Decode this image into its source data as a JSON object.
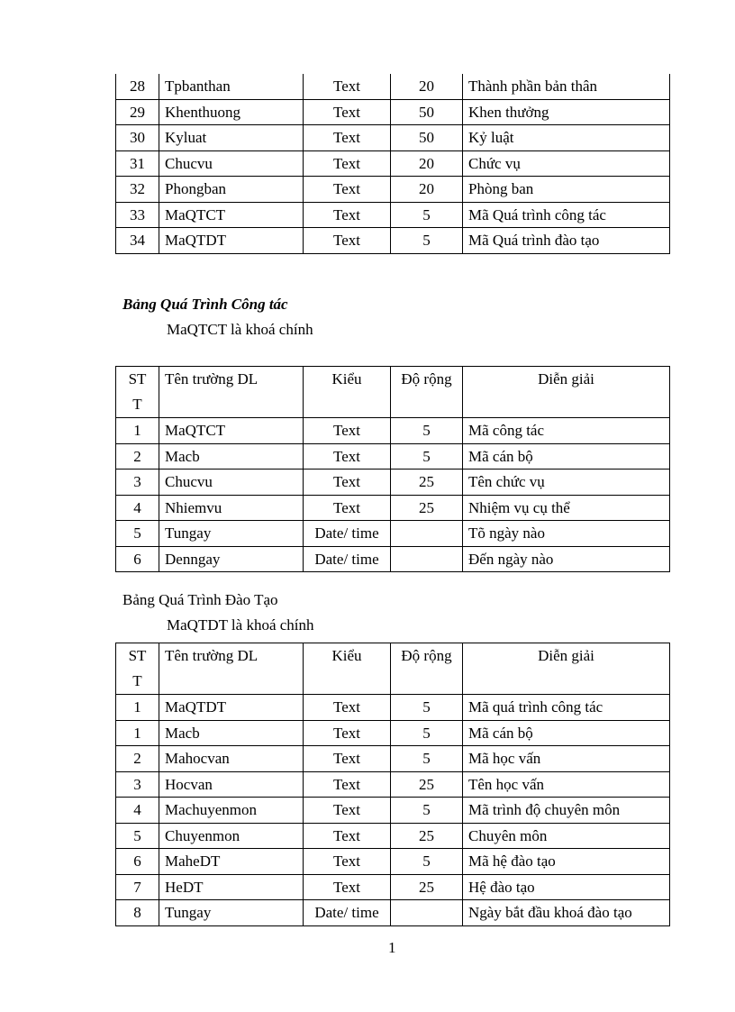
{
  "table_continued": {
    "rows": [
      [
        "28",
        "Tpbanthan",
        "Text",
        "20",
        "Thành phần bản thân"
      ],
      [
        "29",
        "Khenthuong",
        "Text",
        "50",
        "Khen thưởng"
      ],
      [
        "30",
        "Kyluat",
        "Text",
        "50",
        "Kỷ luật"
      ],
      [
        "31",
        "Chucvu",
        "Text",
        "20",
        "Chức vụ"
      ],
      [
        "32",
        "Phongban",
        "Text",
        "20",
        "Phòng ban"
      ],
      [
        "33",
        "MaQTCT",
        "Text",
        "5",
        "Mã Quá trình công tác"
      ],
      [
        "34",
        "MaQTDT",
        "Text",
        "5",
        "Mã Quá trình đào tạo"
      ]
    ]
  },
  "section_cong_tac": {
    "heading": "Bảng Quá Trình Công tác",
    "key_note": "MaQTCT là khoá chính",
    "headers": [
      "ST\nT",
      "Tên trường DL",
      "Kiểu",
      "Độ rộng",
      "Diễn  giải"
    ],
    "rows": [
      [
        "1",
        "MaQTCT",
        "Text",
        "5",
        "Mã công tác"
      ],
      [
        "2",
        "Macb",
        "Text",
        "5",
        "Mã cán bộ"
      ],
      [
        "3",
        "Chucvu",
        "Text",
        "25",
        "Tên chức vụ"
      ],
      [
        "4",
        "Nhiemvu",
        "Text",
        "25",
        "Nhiệm  vụ cụ thể"
      ],
      [
        "5",
        "Tungay",
        "Date/ time",
        "",
        "Tõ ngày nào"
      ],
      [
        "6",
        "Denngay",
        "Date/ time",
        "",
        "Đến ngày nào"
      ]
    ]
  },
  "section_dao_tao": {
    "heading": "Bảng Quá Trình Đào Tạo",
    "key_note": "MaQTDT là khoá chính",
    "headers": [
      "ST\nT",
      "Tên trường DL",
      "Kiểu",
      "Độ rộng",
      "Diễn  giải"
    ],
    "rows": [
      [
        "1",
        "MaQTDT",
        "Text",
        "5",
        "Mã quá trình công tác"
      ],
      [
        "1",
        "Macb",
        "Text",
        "5",
        "Mã cán bộ"
      ],
      [
        "2",
        "Mahocvan",
        "Text",
        "5",
        "Mã học vấn"
      ],
      [
        "3",
        "Hocvan",
        "Text",
        "25",
        "Tên học vấn"
      ],
      [
        "4",
        "Machuyenmon",
        "Text",
        "5",
        "Mã trình độ chuyên môn"
      ],
      [
        "5",
        "Chuyenmon",
        "Text",
        "25",
        "Chuyên môn"
      ],
      [
        "6",
        "MaheDT",
        "Text",
        "5",
        "Mã hệ  đào tạo"
      ],
      [
        "7",
        "HeDT",
        "Text",
        "25",
        "Hệ đào tạo"
      ],
      [
        "8",
        "Tungay",
        "Date/ time",
        "",
        "Ngày bắt đầu khoá đào tạo"
      ]
    ]
  },
  "page_number": "1"
}
